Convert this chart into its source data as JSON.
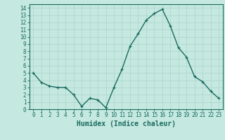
{
  "x": [
    0,
    1,
    2,
    3,
    4,
    5,
    6,
    7,
    8,
    9,
    10,
    11,
    12,
    13,
    14,
    15,
    16,
    17,
    18,
    19,
    20,
    21,
    22,
    23
  ],
  "y": [
    5.0,
    3.7,
    3.2,
    3.0,
    3.0,
    2.0,
    0.4,
    1.5,
    1.3,
    0.2,
    3.0,
    5.5,
    8.7,
    10.4,
    12.3,
    13.2,
    13.8,
    11.5,
    8.5,
    7.2,
    4.5,
    3.8,
    2.5,
    1.5
  ],
  "line_color": "#1a6b60",
  "marker": "+",
  "marker_size": 3,
  "bg_color": "#c5e8e0",
  "grid_color": "#aad4cc",
  "xlabel": "Humidex (Indice chaleur)",
  "xlim": [
    -0.5,
    23.5
  ],
  "ylim": [
    0,
    14.5
  ],
  "yticks": [
    0,
    1,
    2,
    3,
    4,
    5,
    6,
    7,
    8,
    9,
    10,
    11,
    12,
    13,
    14
  ],
  "xticks": [
    0,
    1,
    2,
    3,
    4,
    5,
    6,
    7,
    8,
    9,
    10,
    11,
    12,
    13,
    14,
    15,
    16,
    17,
    18,
    19,
    20,
    21,
    22,
    23
  ],
  "tick_labelsize": 5.5,
  "xlabel_fontsize": 7,
  "line_width": 1.0
}
